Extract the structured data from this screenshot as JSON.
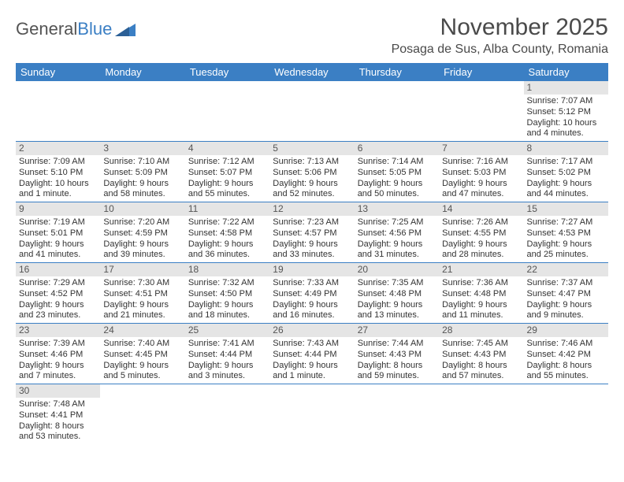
{
  "logo": {
    "text_general": "General",
    "text_blue": "Blue"
  },
  "title": "November 2025",
  "location": "Posaga de Sus, Alba County, Romania",
  "weekdays": [
    "Sunday",
    "Monday",
    "Tuesday",
    "Wednesday",
    "Thursday",
    "Friday",
    "Saturday"
  ],
  "colors": {
    "header_bg": "#3b7fc4",
    "row_divider": "#3b7fc4",
    "daynum_bg": "#e5e5e5",
    "text": "#333333",
    "title_text": "#4a4a4a"
  },
  "weeks": [
    [
      {
        "day": "",
        "sunrise": "",
        "sunset": "",
        "daylight1": "",
        "daylight2": "",
        "empty": true
      },
      {
        "day": "",
        "sunrise": "",
        "sunset": "",
        "daylight1": "",
        "daylight2": "",
        "empty": true
      },
      {
        "day": "",
        "sunrise": "",
        "sunset": "",
        "daylight1": "",
        "daylight2": "",
        "empty": true
      },
      {
        "day": "",
        "sunrise": "",
        "sunset": "",
        "daylight1": "",
        "daylight2": "",
        "empty": true
      },
      {
        "day": "",
        "sunrise": "",
        "sunset": "",
        "daylight1": "",
        "daylight2": "",
        "empty": true
      },
      {
        "day": "",
        "sunrise": "",
        "sunset": "",
        "daylight1": "",
        "daylight2": "",
        "empty": true
      },
      {
        "day": "1",
        "sunrise": "Sunrise: 7:07 AM",
        "sunset": "Sunset: 5:12 PM",
        "daylight1": "Daylight: 10 hours",
        "daylight2": "and 4 minutes."
      }
    ],
    [
      {
        "day": "2",
        "sunrise": "Sunrise: 7:09 AM",
        "sunset": "Sunset: 5:10 PM",
        "daylight1": "Daylight: 10 hours",
        "daylight2": "and 1 minute."
      },
      {
        "day": "3",
        "sunrise": "Sunrise: 7:10 AM",
        "sunset": "Sunset: 5:09 PM",
        "daylight1": "Daylight: 9 hours",
        "daylight2": "and 58 minutes."
      },
      {
        "day": "4",
        "sunrise": "Sunrise: 7:12 AM",
        "sunset": "Sunset: 5:07 PM",
        "daylight1": "Daylight: 9 hours",
        "daylight2": "and 55 minutes."
      },
      {
        "day": "5",
        "sunrise": "Sunrise: 7:13 AM",
        "sunset": "Sunset: 5:06 PM",
        "daylight1": "Daylight: 9 hours",
        "daylight2": "and 52 minutes."
      },
      {
        "day": "6",
        "sunrise": "Sunrise: 7:14 AM",
        "sunset": "Sunset: 5:05 PM",
        "daylight1": "Daylight: 9 hours",
        "daylight2": "and 50 minutes."
      },
      {
        "day": "7",
        "sunrise": "Sunrise: 7:16 AM",
        "sunset": "Sunset: 5:03 PM",
        "daylight1": "Daylight: 9 hours",
        "daylight2": "and 47 minutes."
      },
      {
        "day": "8",
        "sunrise": "Sunrise: 7:17 AM",
        "sunset": "Sunset: 5:02 PM",
        "daylight1": "Daylight: 9 hours",
        "daylight2": "and 44 minutes."
      }
    ],
    [
      {
        "day": "9",
        "sunrise": "Sunrise: 7:19 AM",
        "sunset": "Sunset: 5:01 PM",
        "daylight1": "Daylight: 9 hours",
        "daylight2": "and 41 minutes."
      },
      {
        "day": "10",
        "sunrise": "Sunrise: 7:20 AM",
        "sunset": "Sunset: 4:59 PM",
        "daylight1": "Daylight: 9 hours",
        "daylight2": "and 39 minutes."
      },
      {
        "day": "11",
        "sunrise": "Sunrise: 7:22 AM",
        "sunset": "Sunset: 4:58 PM",
        "daylight1": "Daylight: 9 hours",
        "daylight2": "and 36 minutes."
      },
      {
        "day": "12",
        "sunrise": "Sunrise: 7:23 AM",
        "sunset": "Sunset: 4:57 PM",
        "daylight1": "Daylight: 9 hours",
        "daylight2": "and 33 minutes."
      },
      {
        "day": "13",
        "sunrise": "Sunrise: 7:25 AM",
        "sunset": "Sunset: 4:56 PM",
        "daylight1": "Daylight: 9 hours",
        "daylight2": "and 31 minutes."
      },
      {
        "day": "14",
        "sunrise": "Sunrise: 7:26 AM",
        "sunset": "Sunset: 4:55 PM",
        "daylight1": "Daylight: 9 hours",
        "daylight2": "and 28 minutes."
      },
      {
        "day": "15",
        "sunrise": "Sunrise: 7:27 AM",
        "sunset": "Sunset: 4:53 PM",
        "daylight1": "Daylight: 9 hours",
        "daylight2": "and 25 minutes."
      }
    ],
    [
      {
        "day": "16",
        "sunrise": "Sunrise: 7:29 AM",
        "sunset": "Sunset: 4:52 PM",
        "daylight1": "Daylight: 9 hours",
        "daylight2": "and 23 minutes."
      },
      {
        "day": "17",
        "sunrise": "Sunrise: 7:30 AM",
        "sunset": "Sunset: 4:51 PM",
        "daylight1": "Daylight: 9 hours",
        "daylight2": "and 21 minutes."
      },
      {
        "day": "18",
        "sunrise": "Sunrise: 7:32 AM",
        "sunset": "Sunset: 4:50 PM",
        "daylight1": "Daylight: 9 hours",
        "daylight2": "and 18 minutes."
      },
      {
        "day": "19",
        "sunrise": "Sunrise: 7:33 AM",
        "sunset": "Sunset: 4:49 PM",
        "daylight1": "Daylight: 9 hours",
        "daylight2": "and 16 minutes."
      },
      {
        "day": "20",
        "sunrise": "Sunrise: 7:35 AM",
        "sunset": "Sunset: 4:48 PM",
        "daylight1": "Daylight: 9 hours",
        "daylight2": "and 13 minutes."
      },
      {
        "day": "21",
        "sunrise": "Sunrise: 7:36 AM",
        "sunset": "Sunset: 4:48 PM",
        "daylight1": "Daylight: 9 hours",
        "daylight2": "and 11 minutes."
      },
      {
        "day": "22",
        "sunrise": "Sunrise: 7:37 AM",
        "sunset": "Sunset: 4:47 PM",
        "daylight1": "Daylight: 9 hours",
        "daylight2": "and 9 minutes."
      }
    ],
    [
      {
        "day": "23",
        "sunrise": "Sunrise: 7:39 AM",
        "sunset": "Sunset: 4:46 PM",
        "daylight1": "Daylight: 9 hours",
        "daylight2": "and 7 minutes."
      },
      {
        "day": "24",
        "sunrise": "Sunrise: 7:40 AM",
        "sunset": "Sunset: 4:45 PM",
        "daylight1": "Daylight: 9 hours",
        "daylight2": "and 5 minutes."
      },
      {
        "day": "25",
        "sunrise": "Sunrise: 7:41 AM",
        "sunset": "Sunset: 4:44 PM",
        "daylight1": "Daylight: 9 hours",
        "daylight2": "and 3 minutes."
      },
      {
        "day": "26",
        "sunrise": "Sunrise: 7:43 AM",
        "sunset": "Sunset: 4:44 PM",
        "daylight1": "Daylight: 9 hours",
        "daylight2": "and 1 minute."
      },
      {
        "day": "27",
        "sunrise": "Sunrise: 7:44 AM",
        "sunset": "Sunset: 4:43 PM",
        "daylight1": "Daylight: 8 hours",
        "daylight2": "and 59 minutes."
      },
      {
        "day": "28",
        "sunrise": "Sunrise: 7:45 AM",
        "sunset": "Sunset: 4:43 PM",
        "daylight1": "Daylight: 8 hours",
        "daylight2": "and 57 minutes."
      },
      {
        "day": "29",
        "sunrise": "Sunrise: 7:46 AM",
        "sunset": "Sunset: 4:42 PM",
        "daylight1": "Daylight: 8 hours",
        "daylight2": "and 55 minutes."
      }
    ],
    [
      {
        "day": "30",
        "sunrise": "Sunrise: 7:48 AM",
        "sunset": "Sunset: 4:41 PM",
        "daylight1": "Daylight: 8 hours",
        "daylight2": "and 53 minutes."
      },
      {
        "day": "",
        "sunrise": "",
        "sunset": "",
        "daylight1": "",
        "daylight2": "",
        "empty": true
      },
      {
        "day": "",
        "sunrise": "",
        "sunset": "",
        "daylight1": "",
        "daylight2": "",
        "empty": true
      },
      {
        "day": "",
        "sunrise": "",
        "sunset": "",
        "daylight1": "",
        "daylight2": "",
        "empty": true
      },
      {
        "day": "",
        "sunrise": "",
        "sunset": "",
        "daylight1": "",
        "daylight2": "",
        "empty": true
      },
      {
        "day": "",
        "sunrise": "",
        "sunset": "",
        "daylight1": "",
        "daylight2": "",
        "empty": true
      },
      {
        "day": "",
        "sunrise": "",
        "sunset": "",
        "daylight1": "",
        "daylight2": "",
        "empty": true
      }
    ]
  ]
}
